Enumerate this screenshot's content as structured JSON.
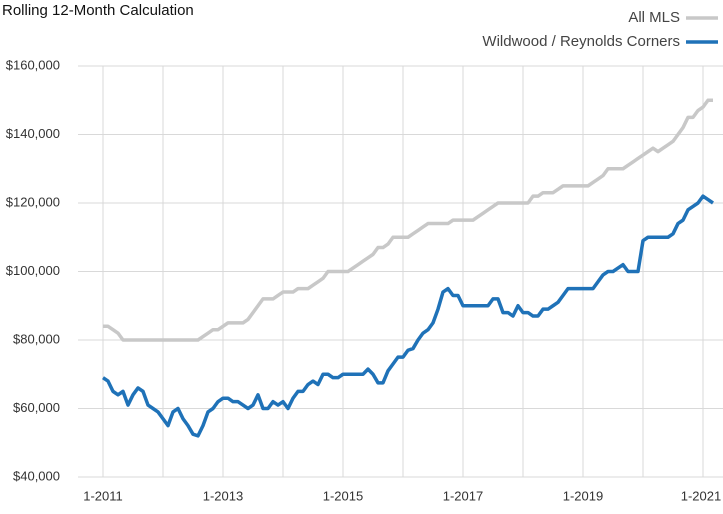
{
  "chart_data": {
    "type": "line",
    "title": "Rolling 12-Month Calculation",
    "categories": [
      "1-2011",
      null,
      null,
      null,
      null,
      null,
      null,
      null,
      null,
      null,
      null,
      null,
      null,
      null,
      null,
      null,
      null,
      null,
      null,
      null,
      null,
      null,
      null,
      null,
      "1-2013",
      null,
      null,
      null,
      null,
      null,
      null,
      null,
      null,
      null,
      null,
      null,
      null,
      null,
      null,
      null,
      null,
      null,
      null,
      null,
      null,
      null,
      null,
      null,
      "1-2015",
      null,
      null,
      null,
      null,
      null,
      null,
      null,
      null,
      null,
      null,
      null,
      null,
      null,
      null,
      null,
      null,
      null,
      null,
      null,
      null,
      null,
      null,
      null,
      "1-2017",
      null,
      null,
      null,
      null,
      null,
      null,
      null,
      null,
      null,
      null,
      null,
      null,
      null,
      null,
      null,
      null,
      null,
      null,
      null,
      null,
      null,
      null,
      null,
      "1-2019",
      null,
      null,
      null,
      null,
      null,
      null,
      null,
      null,
      null,
      null,
      null,
      null,
      null,
      null,
      null,
      null,
      null,
      null,
      null,
      null,
      null,
      null,
      null,
      "1-2021",
      null,
      null
    ],
    "series": [
      {
        "name": "All MLS",
        "color": "#c8c8c8",
        "values": [
          84000,
          84000,
          83000,
          82000,
          80000,
          80000,
          80000,
          80000,
          80000,
          80000,
          80000,
          80000,
          80000,
          80000,
          80000,
          80000,
          80000,
          80000,
          80000,
          80000,
          81000,
          82000,
          83000,
          83000,
          84000,
          85000,
          85000,
          85000,
          85000,
          86000,
          88000,
          90000,
          92000,
          92000,
          92000,
          93000,
          94000,
          94000,
          94000,
          95000,
          95000,
          95000,
          96000,
          97000,
          98000,
          100000,
          100000,
          100000,
          100000,
          100000,
          101000,
          102000,
          103000,
          104000,
          105000,
          107000,
          107000,
          108000,
          110000,
          110000,
          110000,
          110000,
          111000,
          112000,
          113000,
          114000,
          114000,
          114000,
          114000,
          114000,
          115000,
          115000,
          115000,
          115000,
          115000,
          116000,
          117000,
          118000,
          119000,
          120000,
          120000,
          120000,
          120000,
          120000,
          120000,
          120000,
          122000,
          122000,
          123000,
          123000,
          123000,
          124000,
          125000,
          125000,
          125000,
          125000,
          125000,
          125000,
          126000,
          127000,
          128000,
          130000,
          130000,
          130000,
          130000,
          131000,
          132000,
          133000,
          134000,
          135000,
          136000,
          135000,
          136000,
          137000,
          138000,
          140000,
          142000,
          145000,
          145000,
          147000,
          148000,
          150000,
          150000
        ]
      },
      {
        "name": "Wildwood / Reynolds Corners",
        "color": "#1f72b8",
        "values": [
          69000,
          68000,
          65000,
          64000,
          65000,
          61000,
          64000,
          66000,
          65000,
          61000,
          60000,
          59000,
          57000,
          55000,
          59000,
          60000,
          57000,
          55000,
          52500,
          52000,
          55000,
          59000,
          60000,
          62000,
          63000,
          63000,
          62000,
          62000,
          61000,
          60000,
          61000,
          64000,
          60000,
          60000,
          62000,
          61000,
          62000,
          60000,
          63000,
          65000,
          65000,
          67000,
          68000,
          67000,
          70000,
          70000,
          69000,
          69000,
          70000,
          70000,
          70000,
          70000,
          70000,
          71500,
          70000,
          67500,
          67500,
          71000,
          73000,
          75000,
          75000,
          77000,
          77500,
          80000,
          82000,
          83000,
          85000,
          89000,
          94000,
          95000,
          93000,
          93000,
          90000,
          90000,
          90000,
          90000,
          90000,
          90000,
          92000,
          92000,
          88000,
          88000,
          87000,
          90000,
          88000,
          88000,
          87000,
          87000,
          89000,
          89000,
          90000,
          91000,
          93000,
          95000,
          95000,
          95000,
          95000,
          95000,
          95000,
          97000,
          99000,
          100000,
          100000,
          101000,
          102000,
          100000,
          100000,
          100000,
          109000,
          110000,
          110000,
          110000,
          110000,
          110000,
          111000,
          114000,
          115000,
          118000,
          119000,
          120000,
          122000,
          121000,
          120000
        ]
      }
    ],
    "ylim": [
      40000,
      160000
    ],
    "yticks": [
      {
        "value": 40000,
        "label": "$40,000"
      },
      {
        "value": 60000,
        "label": "$60,000"
      },
      {
        "value": 80000,
        "label": "$80,000"
      },
      {
        "value": 100000,
        "label": "$100,000"
      },
      {
        "value": 120000,
        "label": "$120,000"
      },
      {
        "value": 140000,
        "label": "$140,000"
      },
      {
        "value": 160000,
        "label": "$160,000"
      }
    ],
    "grid": true,
    "legend": "top-right"
  }
}
